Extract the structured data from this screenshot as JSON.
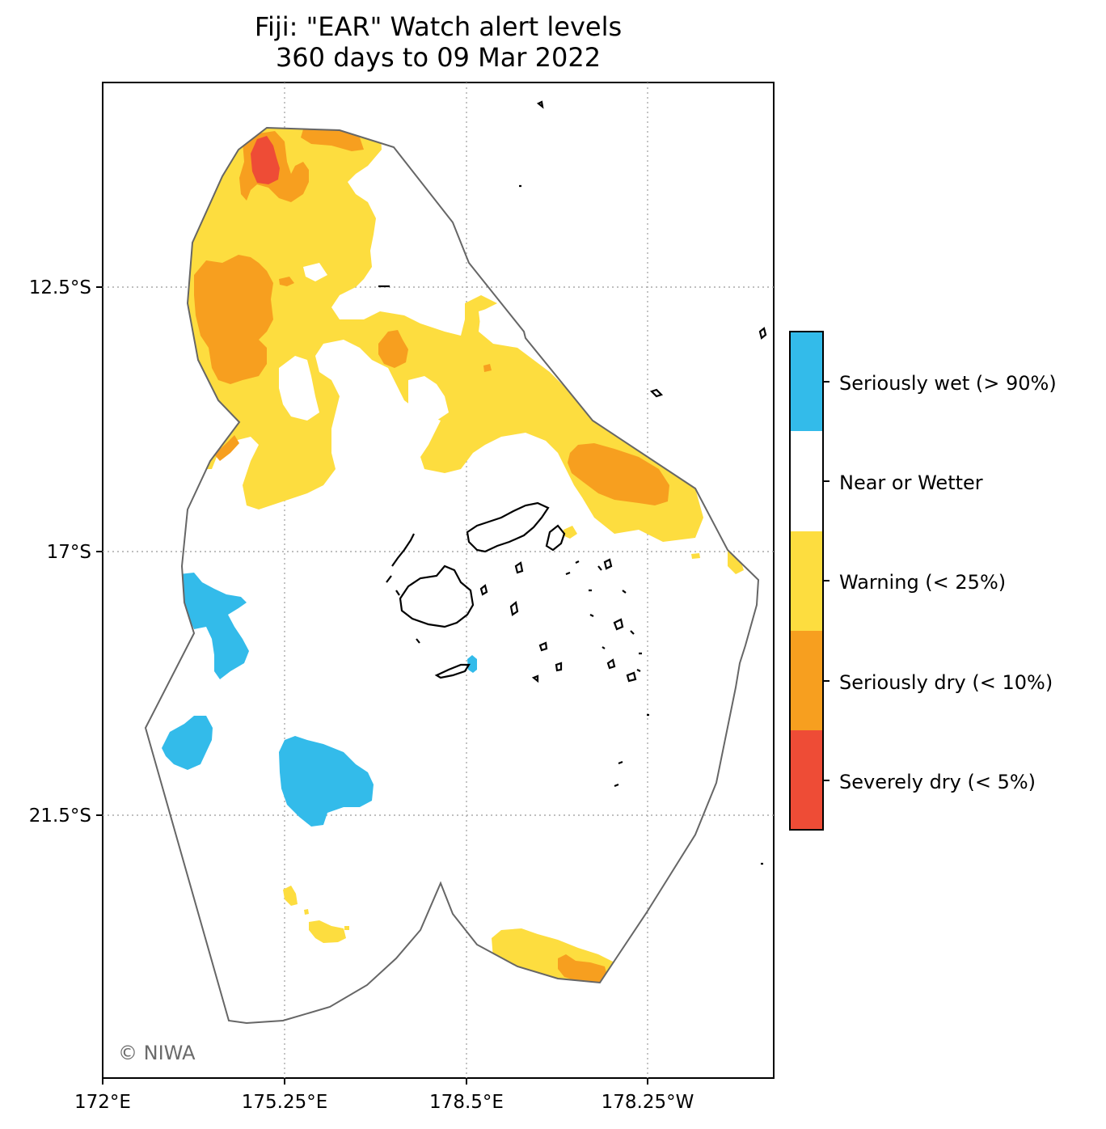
{
  "title": {
    "line1": "Fiji: \"EAR\" Watch alert levels",
    "line2": "360 days to 09 Mar 2022"
  },
  "axes": {
    "x_ticks": [
      "172°E",
      "175.25°E",
      "178.5°E",
      "178.25°W"
    ],
    "y_ticks": [
      "12.5°S",
      "17°S",
      "21.5°S"
    ]
  },
  "credit": "© NIWA",
  "legend": {
    "items": [
      {
        "label": "Seriously wet (> 90%)",
        "color": "#33bbea"
      },
      {
        "label": "Near or Wetter",
        "color": "#ffffff"
      },
      {
        "label": "Warning (< 25%)",
        "color": "#fddd3f"
      },
      {
        "label": "Seriously dry (< 10%)",
        "color": "#f79f1f"
      },
      {
        "label": "Severely dry (< 5%)",
        "color": "#ee4c36"
      }
    ]
  },
  "colors": {
    "wet": "#33bbea",
    "warning": "#fddd3f",
    "seriously_dry": "#f79f1f",
    "severely_dry": "#ee4c36",
    "boundary": "#666666",
    "gridline": "#aaaaaa"
  }
}
